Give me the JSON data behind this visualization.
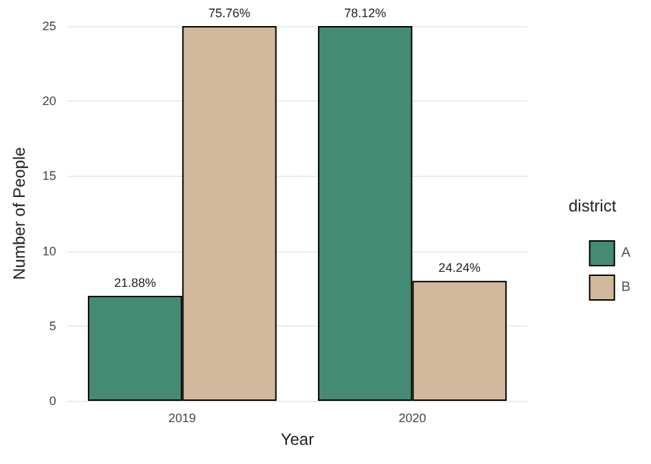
{
  "chart_data": {
    "type": "bar",
    "xlabel": "Year",
    "ylabel": "Number of People",
    "legend_title": "district",
    "categories": [
      "2019",
      "2020"
    ],
    "series": [
      {
        "name": "A",
        "color": "#458b73",
        "values": [
          7,
          25
        ]
      },
      {
        "name": "B",
        "color": "#d2b99e",
        "values": [
          25,
          8
        ]
      }
    ],
    "annotations": [
      {
        "text": "21.88%",
        "x": "2019",
        "y": 7
      },
      {
        "text": "75.76%",
        "x": "2019",
        "y": 25
      },
      {
        "text": "78.12%",
        "x": "2020",
        "y": 25
      },
      {
        "text": "24.24%",
        "x": "2020",
        "y": 8
      }
    ],
    "ylim": [
      0,
      25
    ],
    "yticks": [
      0,
      5,
      10,
      15,
      20,
      25
    ],
    "grid": "y",
    "legend": "right"
  }
}
